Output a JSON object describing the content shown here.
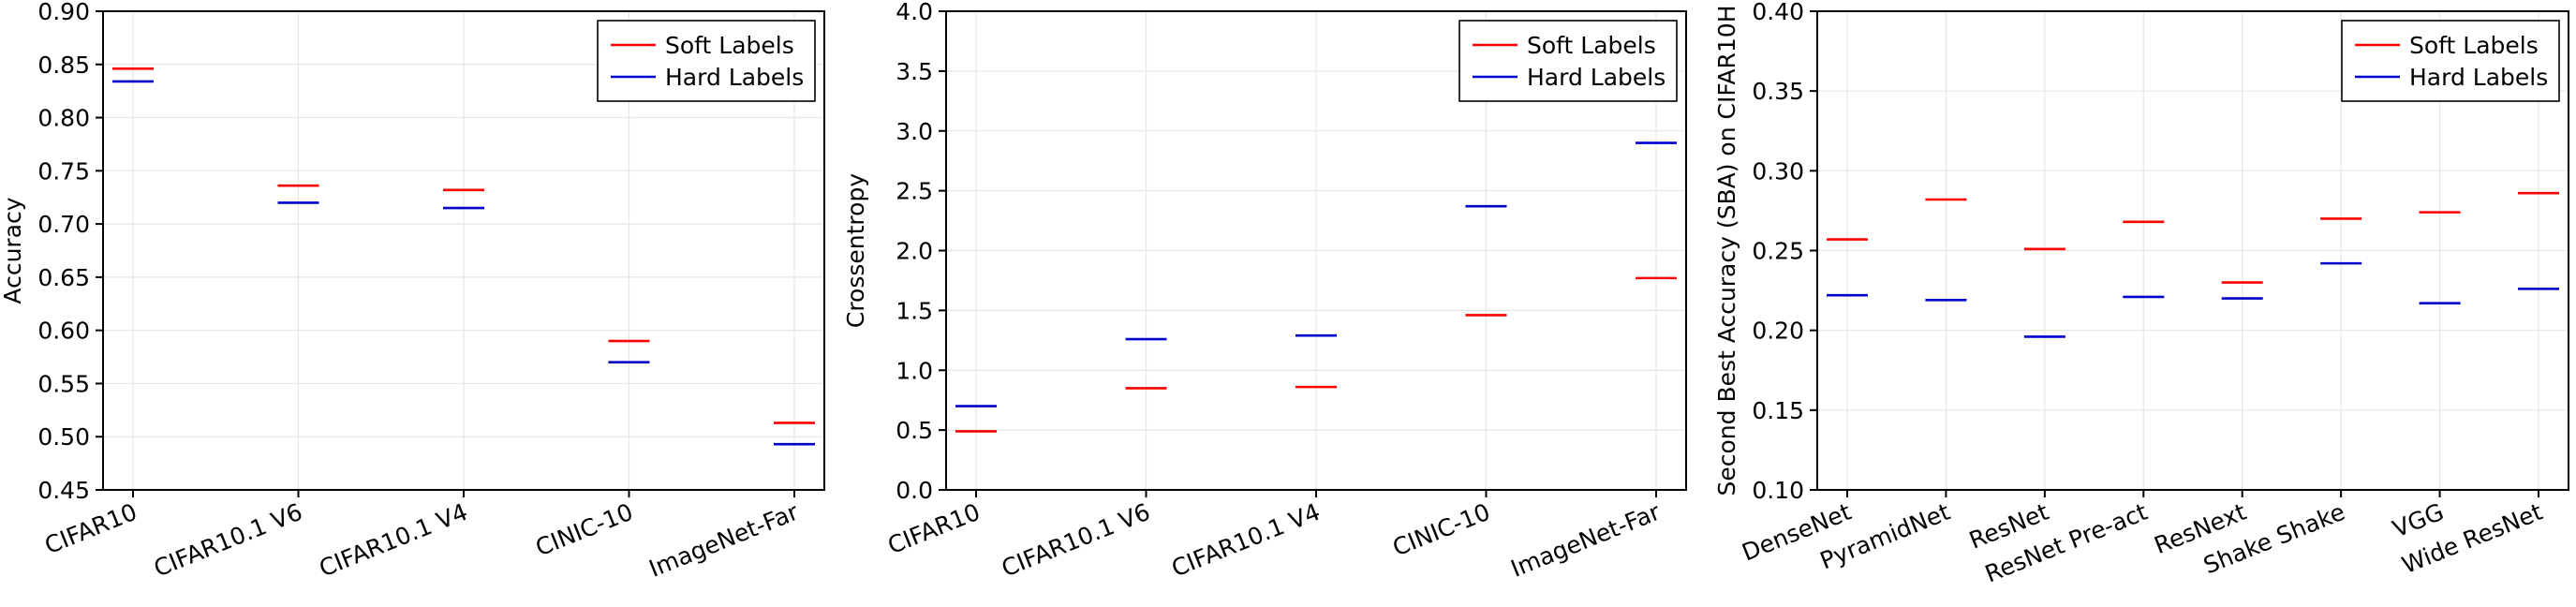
{
  "colors": {
    "soft": "#ff0000",
    "hard": "#0000cc"
  },
  "chart_data": [
    {
      "type": "scatter",
      "marker": "horizontal-dash",
      "title": "",
      "xlabel": "",
      "ylabel": "Accuracy",
      "ylim": [
        0.45,
        0.9
      ],
      "yticks": [
        "0.45",
        "0.50",
        "0.55",
        "0.60",
        "0.65",
        "0.70",
        "0.75",
        "0.80",
        "0.85",
        "0.90"
      ],
      "categories": [
        "CIFAR10",
        "CIFAR10.1 V6",
        "CIFAR10.1 V4",
        "CINIC-10",
        "ImageNet-Far"
      ],
      "series": [
        {
          "name": "Soft Labels",
          "color": "#ff0000",
          "values": [
            0.846,
            0.736,
            0.732,
            0.59,
            0.513
          ]
        },
        {
          "name": "Hard Labels",
          "color": "#0000cc",
          "values": [
            0.834,
            0.72,
            0.715,
            0.57,
            0.493
          ]
        }
      ],
      "legend": "top-right",
      "grid": true
    },
    {
      "type": "scatter",
      "marker": "horizontal-dash",
      "title": "",
      "xlabel": "",
      "ylabel": "Crossentropy",
      "ylim": [
        0.0,
        4.0
      ],
      "yticks": [
        "0.0",
        "0.5",
        "1.0",
        "1.5",
        "2.0",
        "2.5",
        "3.0",
        "3.5",
        "4.0"
      ],
      "categories": [
        "CIFAR10",
        "CIFAR10.1 V6",
        "CIFAR10.1 V4",
        "CINIC-10",
        "ImageNet-Far"
      ],
      "series": [
        {
          "name": "Soft Labels",
          "color": "#ff0000",
          "values": [
            0.49,
            0.85,
            0.86,
            1.46,
            1.77
          ]
        },
        {
          "name": "Hard Labels",
          "color": "#0000cc",
          "values": [
            0.7,
            1.26,
            1.29,
            2.37,
            2.9
          ]
        }
      ],
      "legend": "top-right",
      "grid": true
    },
    {
      "type": "scatter",
      "marker": "horizontal-dash",
      "title": "",
      "xlabel": "",
      "ylabel": "Second Best Accuracy (SBA) on CIFAR10H",
      "ylim": [
        0.1,
        0.4
      ],
      "yticks": [
        "0.10",
        "0.15",
        "0.20",
        "0.25",
        "0.30",
        "0.35",
        "0.40"
      ],
      "categories": [
        "DenseNet",
        "PyramidNet",
        "ResNet",
        "ResNet Pre-act",
        "ResNext",
        "Shake Shake",
        "VGG",
        "Wide ResNet"
      ],
      "series": [
        {
          "name": "Soft Labels",
          "color": "#ff0000",
          "values": [
            0.257,
            0.282,
            0.251,
            0.268,
            0.23,
            0.27,
            0.274,
            0.286
          ]
        },
        {
          "name": "Hard Labels",
          "color": "#0000cc",
          "values": [
            0.222,
            0.219,
            0.196,
            0.221,
            0.22,
            0.242,
            0.217,
            0.226
          ]
        }
      ],
      "legend": "top-right",
      "grid": true
    }
  ]
}
